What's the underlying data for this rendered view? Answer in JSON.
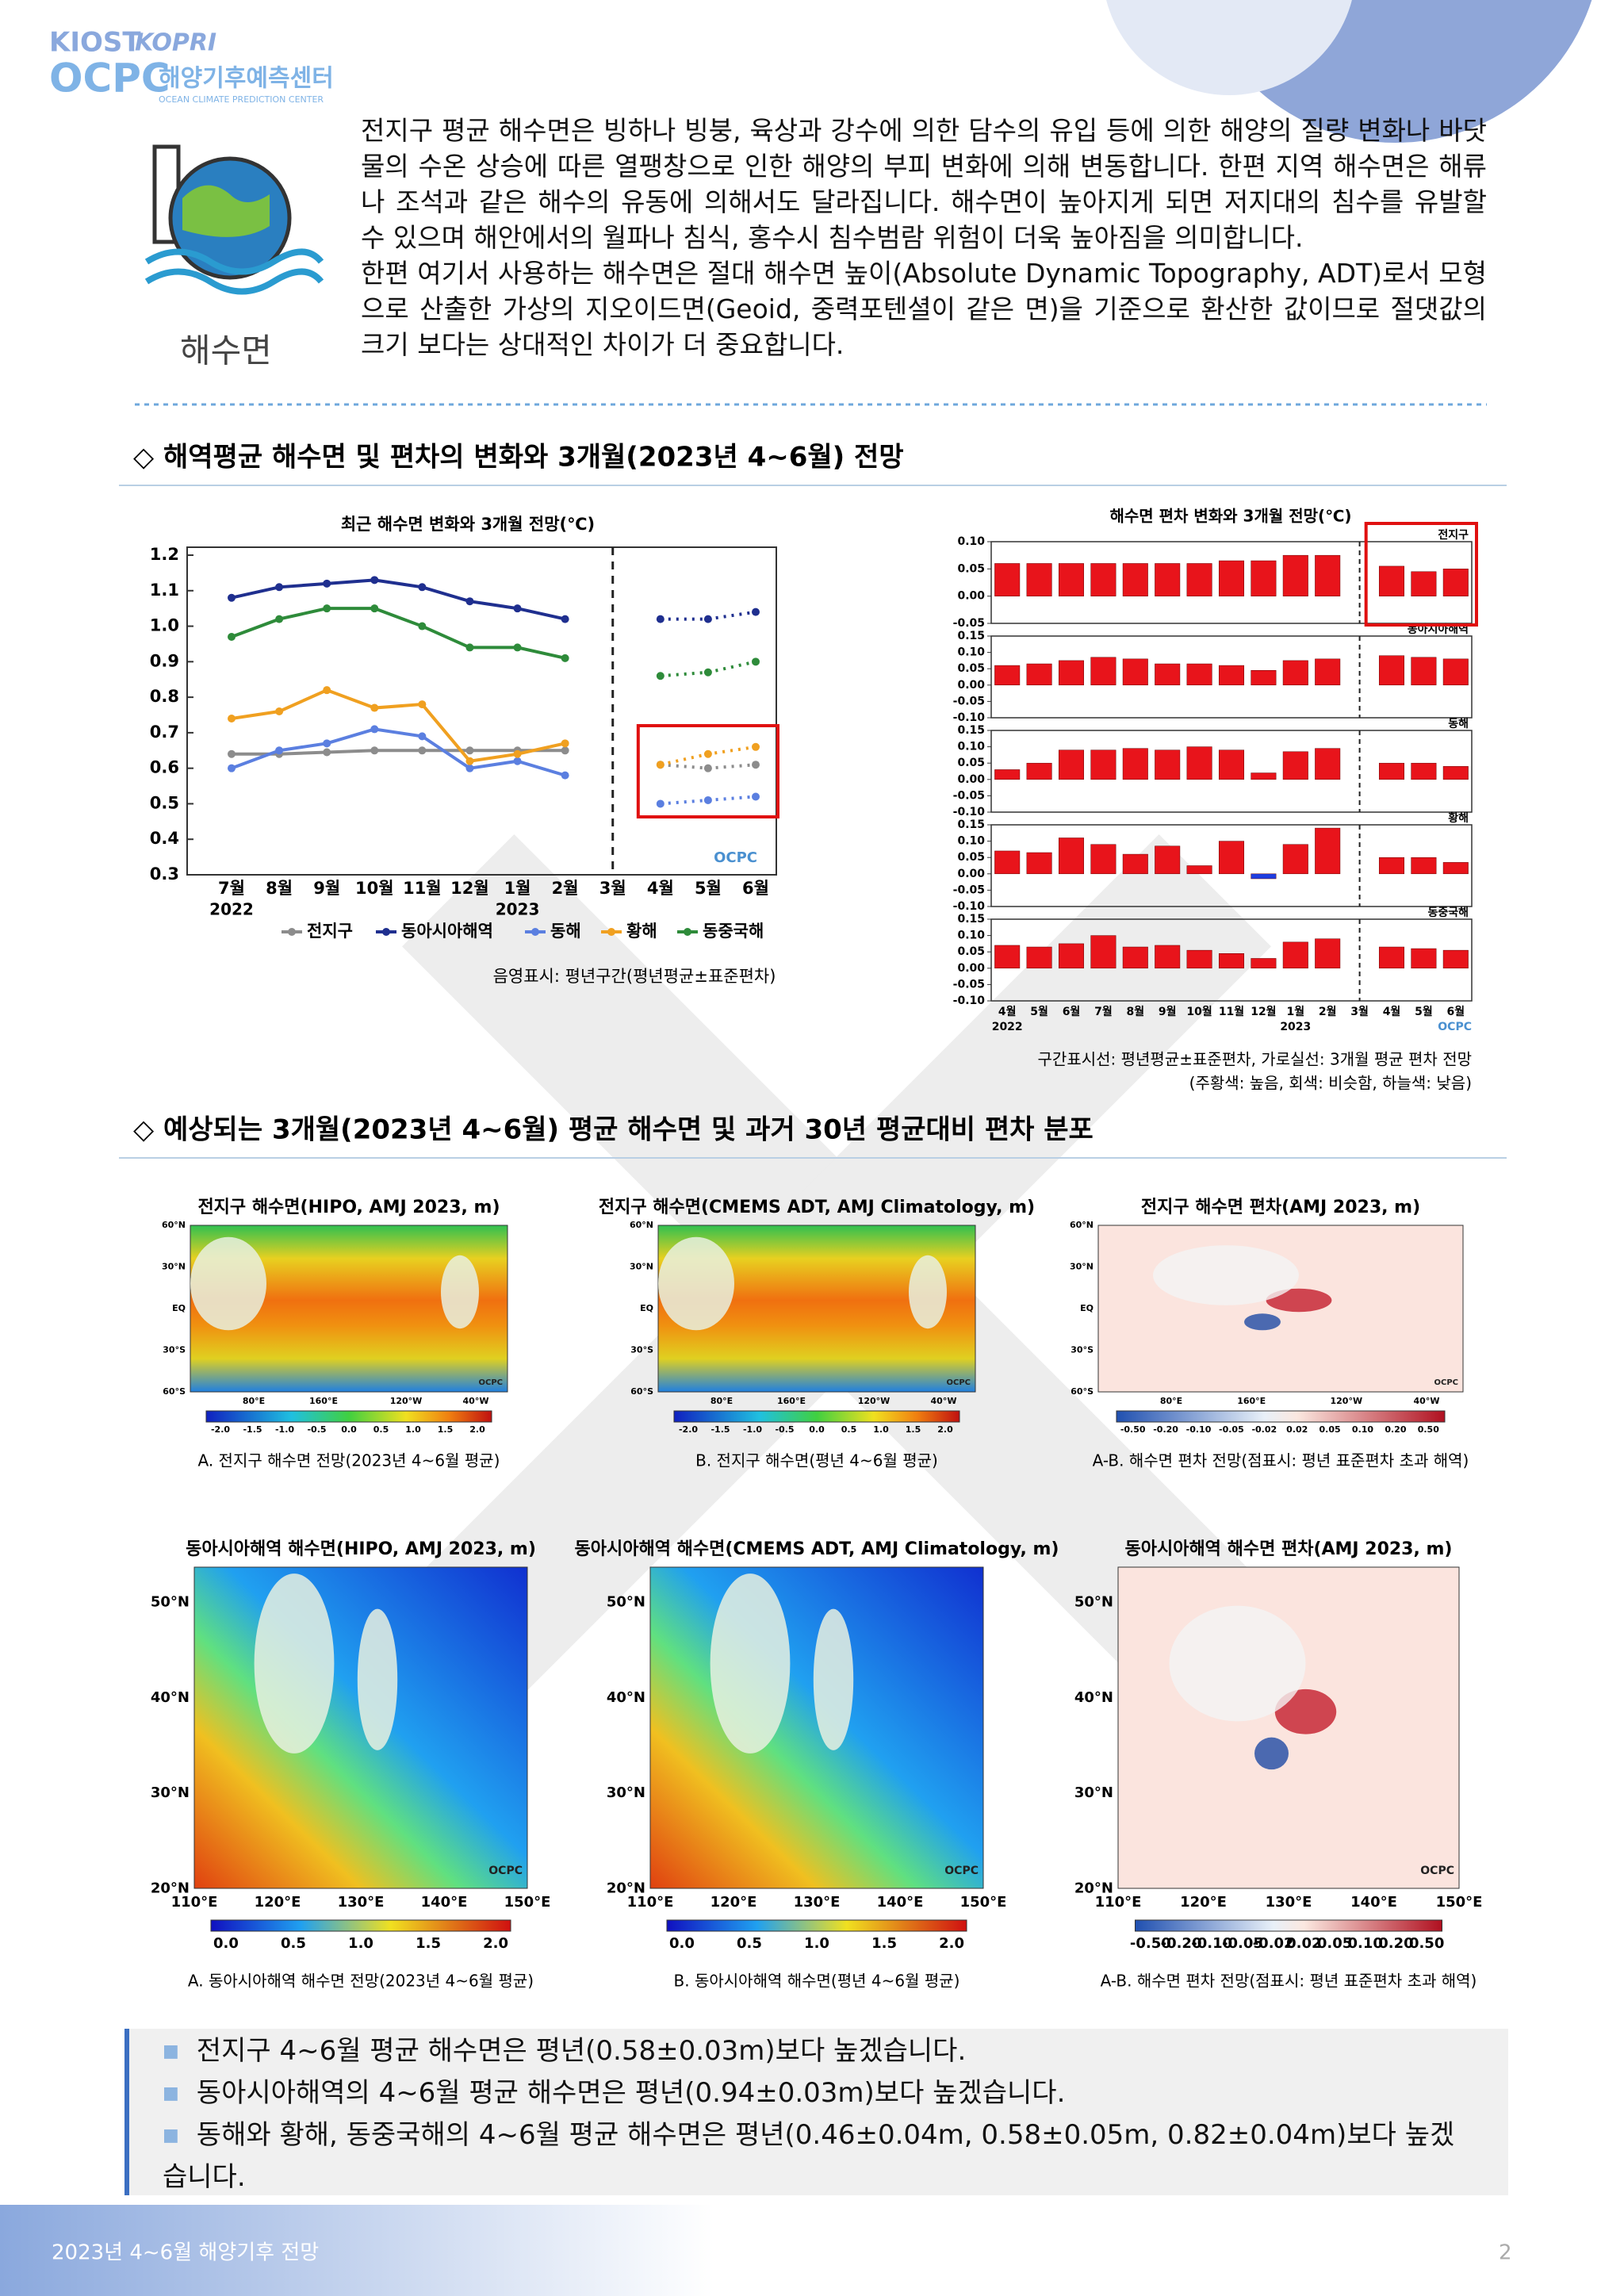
{
  "header": {
    "logo_kiost": "KIOST",
    "logo_kopri": "KOPRI",
    "logo_ocpc": "OCPC",
    "center_name": "해양기후예측센터",
    "center_name_en": "OCEAN CLIMATE PREDICTION CENTER"
  },
  "intro": {
    "icon_label": "해수면",
    "paragraphs": [
      "전지구 평균 해수면은 빙하나 빙붕, 육상과 강수에 의한 담수의 유입 등에 의한 해양의 질량 변화나 바닷물의 수온 상승에 따른 열팽창으로 인한 해양의 부피 변화에 의해 변동합니다. 한편 지역 해수면은 해류나 조석과 같은 해수의 유동에 의해서도 달라집니다. 해수면이 높아지게 되면 저지대의 침수를 유발할 수 있으며 해안에서의 월파나 침식, 홍수시 침수범람 위험이 더욱 높아짐을 의미합니다.",
      "한편 여기서 사용하는 해수면은 절대 해수면 높이(Absolute Dynamic Topography, ADT)로서 모형으로 산출한 가상의 지오이드면(Geoid, 중력포텐셜이 같은 면)을 기준으로 환산한 값이므로 절댓값의 크기 보다는 상대적인 차이가 더 중요합니다."
    ]
  },
  "section1_title": "◇ 해역평균 해수면 및 편차의 변화와 3개월(2023년 4~6월) 전망",
  "watermark": "OCPC",
  "chart_data": [
    {
      "type": "line",
      "title": "최근 해수면 변화와 3개월 전망(℃)",
      "categories": [
        "7월",
        "8월",
        "9월",
        "10월",
        "11월",
        "12월",
        "1월",
        "2월",
        "3월",
        "4월",
        "5월",
        "6월"
      ],
      "category_years": [
        "2022",
        null,
        null,
        null,
        null,
        null,
        "2023",
        null,
        null,
        null,
        null,
        null
      ],
      "ylim": [
        0.3,
        1.2
      ],
      "yticks": [
        0.3,
        0.4,
        0.5,
        0.6,
        0.7,
        0.8,
        0.9,
        {
          "value": 1,
          "label": "1.0"
        },
        1.1,
        1.2
      ],
      "series": [
        {
          "name": "전지구",
          "color": "#8c8c8c",
          "values": [
            0.64,
            0.64,
            0.645,
            0.65,
            0.65,
            0.65,
            0.65,
            0.65,
            null,
            0.61,
            0.6,
            0.61
          ]
        },
        {
          "name": "동아시아해역",
          "color": "#1f2f8f",
          "values": [
            1.08,
            1.11,
            1.12,
            1.13,
            1.11,
            1.07,
            1.05,
            1.02,
            null,
            1.02,
            1.02,
            1.04
          ]
        },
        {
          "name": "동해",
          "color": "#5b7fe0",
          "values": [
            0.6,
            0.65,
            0.67,
            0.71,
            0.69,
            0.6,
            0.62,
            0.58,
            null,
            0.5,
            0.51,
            0.52
          ]
        },
        {
          "name": "황해",
          "color": "#f0a020",
          "values": [
            0.74,
            0.76,
            0.82,
            0.77,
            0.78,
            0.62,
            0.64,
            0.67,
            null,
            0.61,
            0.64,
            0.66
          ]
        },
        {
          "name": "동중국해",
          "color": "#2e8b3a",
          "values": [
            0.97,
            1.02,
            1.05,
            1.05,
            1.0,
            0.94,
            0.94,
            0.91,
            null,
            0.86,
            0.87,
            0.9
          ]
        }
      ],
      "note": "음영표시: 평년구간(평년평균±표준편차)"
    },
    {
      "type": "bar",
      "title": "해수면 편차 변화와 3개월 전망(℃)",
      "categories": [
        "4월",
        "5월",
        "6월",
        "7월",
        "8월",
        "9월",
        "10월",
        "11월",
        "12월",
        "1월",
        "2월",
        "3월",
        "4월",
        "5월",
        "6월"
      ],
      "category_years": [
        "2022",
        null,
        null,
        null,
        null,
        null,
        null,
        null,
        null,
        "2023",
        null,
        null,
        null,
        null,
        null
      ],
      "color": "#e8141b",
      "negative_color": "#1e3de0",
      "panels": [
        {
          "name": "전지구",
          "ylim": [
            -0.05,
            0.1
          ],
          "yticks": [
            -0.05,
            {
              "value": 0,
              "label": "0.00"
            },
            0.05,
            {
              "value": 0.1,
              "label": "0.10"
            }
          ],
          "values": [
            0.06,
            0.06,
            0.06,
            0.06,
            0.06,
            0.06,
            0.06,
            0.065,
            0.065,
            0.075,
            0.075,
            null,
            0.055,
            0.045,
            0.05
          ]
        },
        {
          "name": "동아시아해역",
          "ylim": [
            -0.1,
            0.15
          ],
          "yticks": [
            {
              "value": -0.1,
              "label": "-0.10"
            },
            -0.05,
            {
              "value": 0,
              "label": "0.00"
            },
            0.05,
            {
              "value": 0.1,
              "label": "0.10"
            },
            0.15
          ],
          "values": [
            0.06,
            0.065,
            0.075,
            0.085,
            0.08,
            0.065,
            0.065,
            0.06,
            0.045,
            0.075,
            0.08,
            null,
            0.09,
            0.085,
            0.08
          ]
        },
        {
          "name": "동해",
          "ylim": [
            -0.1,
            0.15
          ],
          "yticks": [
            {
              "value": -0.1,
              "label": "-0.10"
            },
            -0.05,
            {
              "value": 0,
              "label": "0.00"
            },
            0.05,
            {
              "value": 0.1,
              "label": "0.10"
            },
            0.15
          ],
          "values": [
            0.03,
            0.05,
            0.09,
            0.09,
            0.095,
            0.09,
            0.1,
            0.09,
            0.02,
            0.085,
            0.095,
            null,
            0.05,
            0.05,
            0.04
          ]
        },
        {
          "name": "황해",
          "ylim": [
            -0.1,
            0.15
          ],
          "yticks": [
            {
              "value": -0.1,
              "label": "-0.10"
            },
            -0.05,
            {
              "value": 0,
              "label": "0.00"
            },
            0.05,
            {
              "value": 0.1,
              "label": "0.10"
            },
            0.15
          ],
          "values": [
            0.07,
            0.065,
            0.11,
            0.09,
            0.06,
            0.085,
            0.025,
            0.1,
            -0.015,
            0.09,
            0.14,
            null,
            0.05,
            0.05,
            0.035
          ]
        },
        {
          "name": "동중국해",
          "ylim": [
            -0.1,
            0.15
          ],
          "yticks": [
            {
              "value": -0.1,
              "label": "-0.10"
            },
            -0.05,
            {
              "value": 0,
              "label": "0.00"
            },
            0.05,
            {
              "value": 0.1,
              "label": "0.10"
            },
            0.15
          ],
          "values": [
            0.07,
            0.065,
            0.075,
            0.1,
            0.065,
            0.07,
            0.055,
            0.045,
            0.03,
            0.08,
            0.09,
            null,
            0.065,
            0.06,
            0.055
          ]
        }
      ],
      "notes": [
        "구간표시선: 평년평균±표준편차, 가로실선: 3개월 평균 편차 전망",
        "(주황색: 높음, 회색: 비슷함, 하늘색: 낮음)"
      ]
    }
  ],
  "section2_title": "◇ 예상되는 3개월(2023년 4~6월) 평균 해수면 및 과거 30년 평균대비 편차 분포",
  "maps": {
    "global_lat": [
      "60°N",
      "30°N",
      "EQ",
      "30°S",
      "60°S"
    ],
    "global_lon": [
      "80°E",
      "160°E",
      "120°W",
      "40°W"
    ],
    "ea_lat": [
      "50°N",
      "40°N",
      "30°N",
      "20°N"
    ],
    "ea_lon": [
      "110°E",
      "120°E",
      "130°E",
      "140°E",
      "150°E"
    ],
    "items": [
      {
        "region": "global",
        "field": "absolute",
        "title": "전지구 해수면(HIPO, AMJ 2023, m)",
        "caption": "A. 전지구 해수면 전망(2023년 4~6월 평균)",
        "colorbar": [
          "-2.0",
          "-1.5",
          "-1.0",
          "-0.5",
          "0.0",
          "0.5",
          "1.0",
          "1.5",
          "2.0"
        ]
      },
      {
        "region": "global",
        "field": "absolute",
        "title": "전지구 해수면(CMEMS ADT, AMJ Climatology, m)",
        "caption": "B. 전지구 해수면(평년 4~6월 평균)",
        "colorbar": [
          "-2.0",
          "-1.5",
          "-1.0",
          "-0.5",
          "0.0",
          "0.5",
          "1.0",
          "1.5",
          "2.0"
        ]
      },
      {
        "region": "global",
        "field": "anomaly",
        "title": "전지구 해수면 편차(AMJ 2023, m)",
        "caption": "A-B. 해수면 편차 전망(점표시: 평년 표준편차 초과 해역)",
        "colorbar": [
          "-0.50",
          "-0.20",
          "-0.10",
          "-0.05",
          "-0.02",
          "0.02",
          "0.05",
          "0.10",
          "0.20",
          "0.50"
        ]
      },
      {
        "region": "east_asia",
        "field": "absolute",
        "title": "동아시아해역 해수면(HIPO, AMJ 2023, m)",
        "caption": "A. 동아시아해역 해수면 전망(2023년 4~6월 평균)",
        "colorbar": [
          "0.0",
          "0.5",
          "1.0",
          "1.5",
          "2.0"
        ]
      },
      {
        "region": "east_asia",
        "field": "absolute",
        "title": "동아시아해역 해수면(CMEMS ADT, AMJ Climatology, m)",
        "caption": "B. 동아시아해역 해수면(평년 4~6월 평균)",
        "colorbar": [
          "0.0",
          "0.5",
          "1.0",
          "1.5",
          "2.0"
        ]
      },
      {
        "region": "east_asia",
        "field": "anomaly",
        "title": "동아시아해역 해수면 편차(AMJ 2023, m)",
        "caption": "A-B. 해수면 편차 전망(점표시: 평년 표준편차 초과 해역)",
        "colorbar": [
          "-0.50",
          "-0.20",
          "-0.10",
          "-0.05",
          "-0.02",
          "0.02",
          "0.05",
          "0.10",
          "0.20",
          "0.50"
        ]
      }
    ]
  },
  "summary": [
    "전지구 4~6월 평균 해수면은 평년(0.58±0.03m)보다 높겠습니다.",
    "동아시아해역의 4~6월 평균 해수면은 평년(0.94±0.03m)보다 높겠습니다.",
    "동해와 황해, 동중국해의 4~6월 평균 해수면은 평년(0.46±0.04m, 0.58±0.05m, 0.82±0.04m)보다 높겠습니다."
  ],
  "footer": {
    "text": "2023년 4~6월 해양기후 전망",
    "page": "2"
  }
}
